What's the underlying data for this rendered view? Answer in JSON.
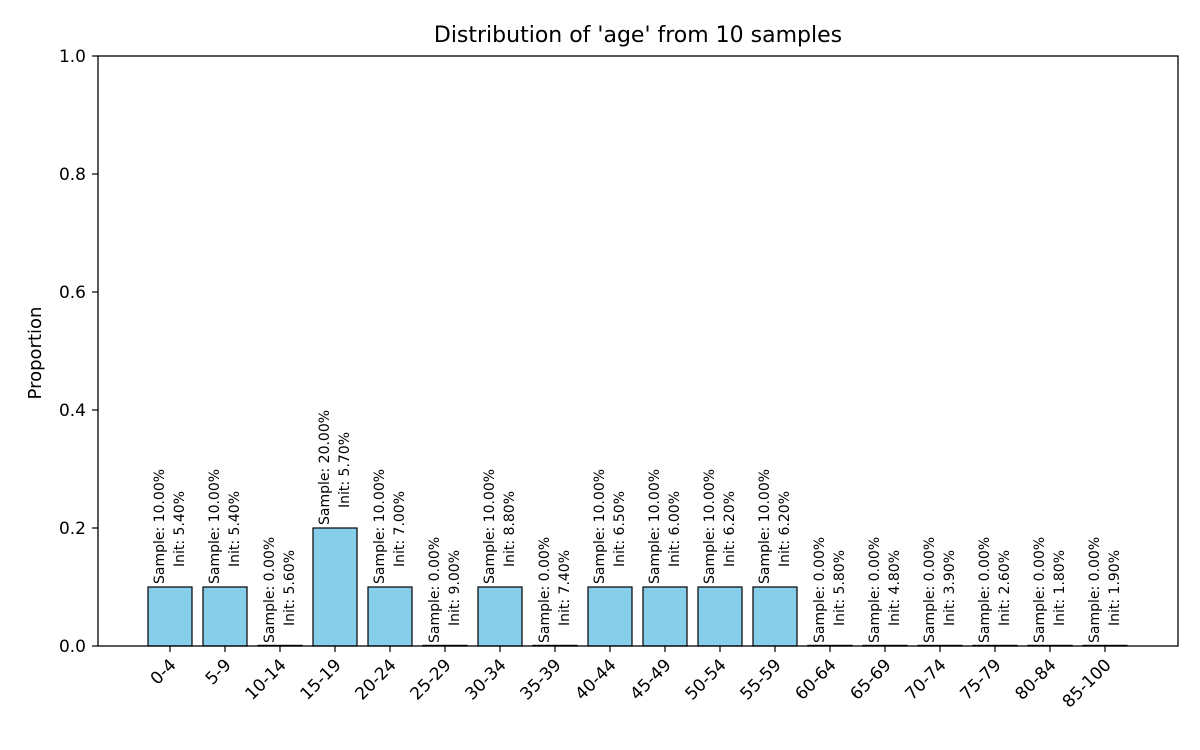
{
  "chart_data": {
    "type": "bar",
    "title": "Distribution of 'age' from 10 samples",
    "xlabel": "",
    "ylabel": "Proportion",
    "ylim": [
      0,
      1.0
    ],
    "yticks": [
      "0.0",
      "0.2",
      "0.4",
      "0.6",
      "0.8",
      "1.0"
    ],
    "grid": false,
    "bar_color": "#87ceeb",
    "edge_color": "#000000",
    "categories": [
      "0-4",
      "5-9",
      "10-14",
      "15-19",
      "20-24",
      "25-29",
      "30-34",
      "35-39",
      "40-44",
      "45-49",
      "50-54",
      "55-59",
      "60-64",
      "65-69",
      "70-74",
      "75-79",
      "80-84",
      "85-100"
    ],
    "values": [
      0.1,
      0.1,
      0.0,
      0.2,
      0.1,
      0.0,
      0.1,
      0.0,
      0.1,
      0.1,
      0.1,
      0.1,
      0.0,
      0.0,
      0.0,
      0.0,
      0.0,
      0.0
    ],
    "bar_labels": [
      {
        "sample": "Sample: 10.00%",
        "init": "Init: 5.40%"
      },
      {
        "sample": "Sample: 10.00%",
        "init": "Init: 5.40%"
      },
      {
        "sample": "Sample: 0.00%",
        "init": "Init: 5.60%"
      },
      {
        "sample": "Sample: 20.00%",
        "init": "Init: 5.70%"
      },
      {
        "sample": "Sample: 10.00%",
        "init": "Init: 7.00%"
      },
      {
        "sample": "Sample: 0.00%",
        "init": "Init: 9.00%"
      },
      {
        "sample": "Sample: 10.00%",
        "init": "Init: 8.80%"
      },
      {
        "sample": "Sample: 0.00%",
        "init": "Init: 7.40%"
      },
      {
        "sample": "Sample: 10.00%",
        "init": "Init: 6.50%"
      },
      {
        "sample": "Sample: 10.00%",
        "init": "Init: 6.00%"
      },
      {
        "sample": "Sample: 10.00%",
        "init": "Init: 6.20%"
      },
      {
        "sample": "Sample: 10.00%",
        "init": "Init: 6.20%"
      },
      {
        "sample": "Sample: 0.00%",
        "init": "Init: 5.80%"
      },
      {
        "sample": "Sample: 0.00%",
        "init": "Init: 4.80%"
      },
      {
        "sample": "Sample: 0.00%",
        "init": "Init: 3.90%"
      },
      {
        "sample": "Sample: 0.00%",
        "init": "Init: 2.60%"
      },
      {
        "sample": "Sample: 0.00%",
        "init": "Init: 1.80%"
      },
      {
        "sample": "Sample: 0.00%",
        "init": "Init: 1.90%"
      }
    ]
  }
}
